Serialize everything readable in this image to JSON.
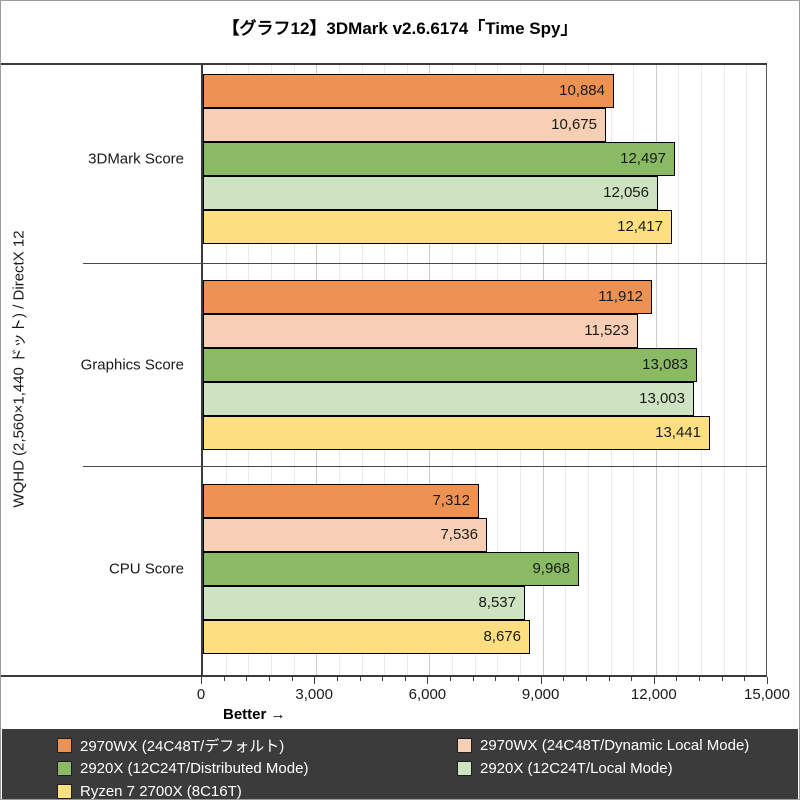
{
  "title": "【グラフ12】3DMark v2.6.6174「Time Spy」",
  "y_axis_label": "WQHD (2,560×1,440 ドット) / DirectX 12",
  "better_label": "Better →",
  "chart_data": {
    "type": "bar",
    "orientation": "horizontal",
    "title": "【グラフ12】3DMark v2.6.6174「Time Spy」",
    "xlabel": "Better →",
    "ylabel": "WQHD (2,560×1,440 ドット) / DirectX 12",
    "xlim": [
      0,
      15000
    ],
    "x_major_tick": 3000,
    "x_minor_tick": 600,
    "x_tick_labels": [
      "0",
      "3,000",
      "6,000",
      "9,000",
      "12,000",
      "15,000"
    ],
    "grid": "vertical minor and major gridlines on",
    "legend_position": "bottom",
    "value_labels": "inside bar end, comma formatted",
    "categories": [
      "3DMark Score",
      "Graphics Score",
      "CPU Score"
    ],
    "series": [
      {
        "name": "2970WX (24C48T/デフォルト)",
        "color": "#ED9252",
        "values": [
          10884,
          11912,
          7312
        ]
      },
      {
        "name": "2970WX (24C48T/Dynamic Local Mode)",
        "color": "#F7CFB4",
        "values": [
          10675,
          11523,
          7536
        ]
      },
      {
        "name": "2920X (12C24T/Distributed Mode)",
        "color": "#8BBA64",
        "values": [
          12497,
          13083,
          9968
        ]
      },
      {
        "name": "2920X (12C24T/Local Mode)",
        "color": "#CEE3C1",
        "values": [
          12056,
          13003,
          8537
        ]
      },
      {
        "name": "Ryzen 7 2700X (8C16T)",
        "color": "#FDDE80",
        "values": [
          12417,
          13441,
          8676
        ]
      }
    ]
  },
  "legend": {
    "background": "#3b3b3b",
    "text_color": "#ffffff",
    "columns": [
      [
        0,
        2,
        4
      ],
      [
        1,
        3
      ]
    ]
  }
}
